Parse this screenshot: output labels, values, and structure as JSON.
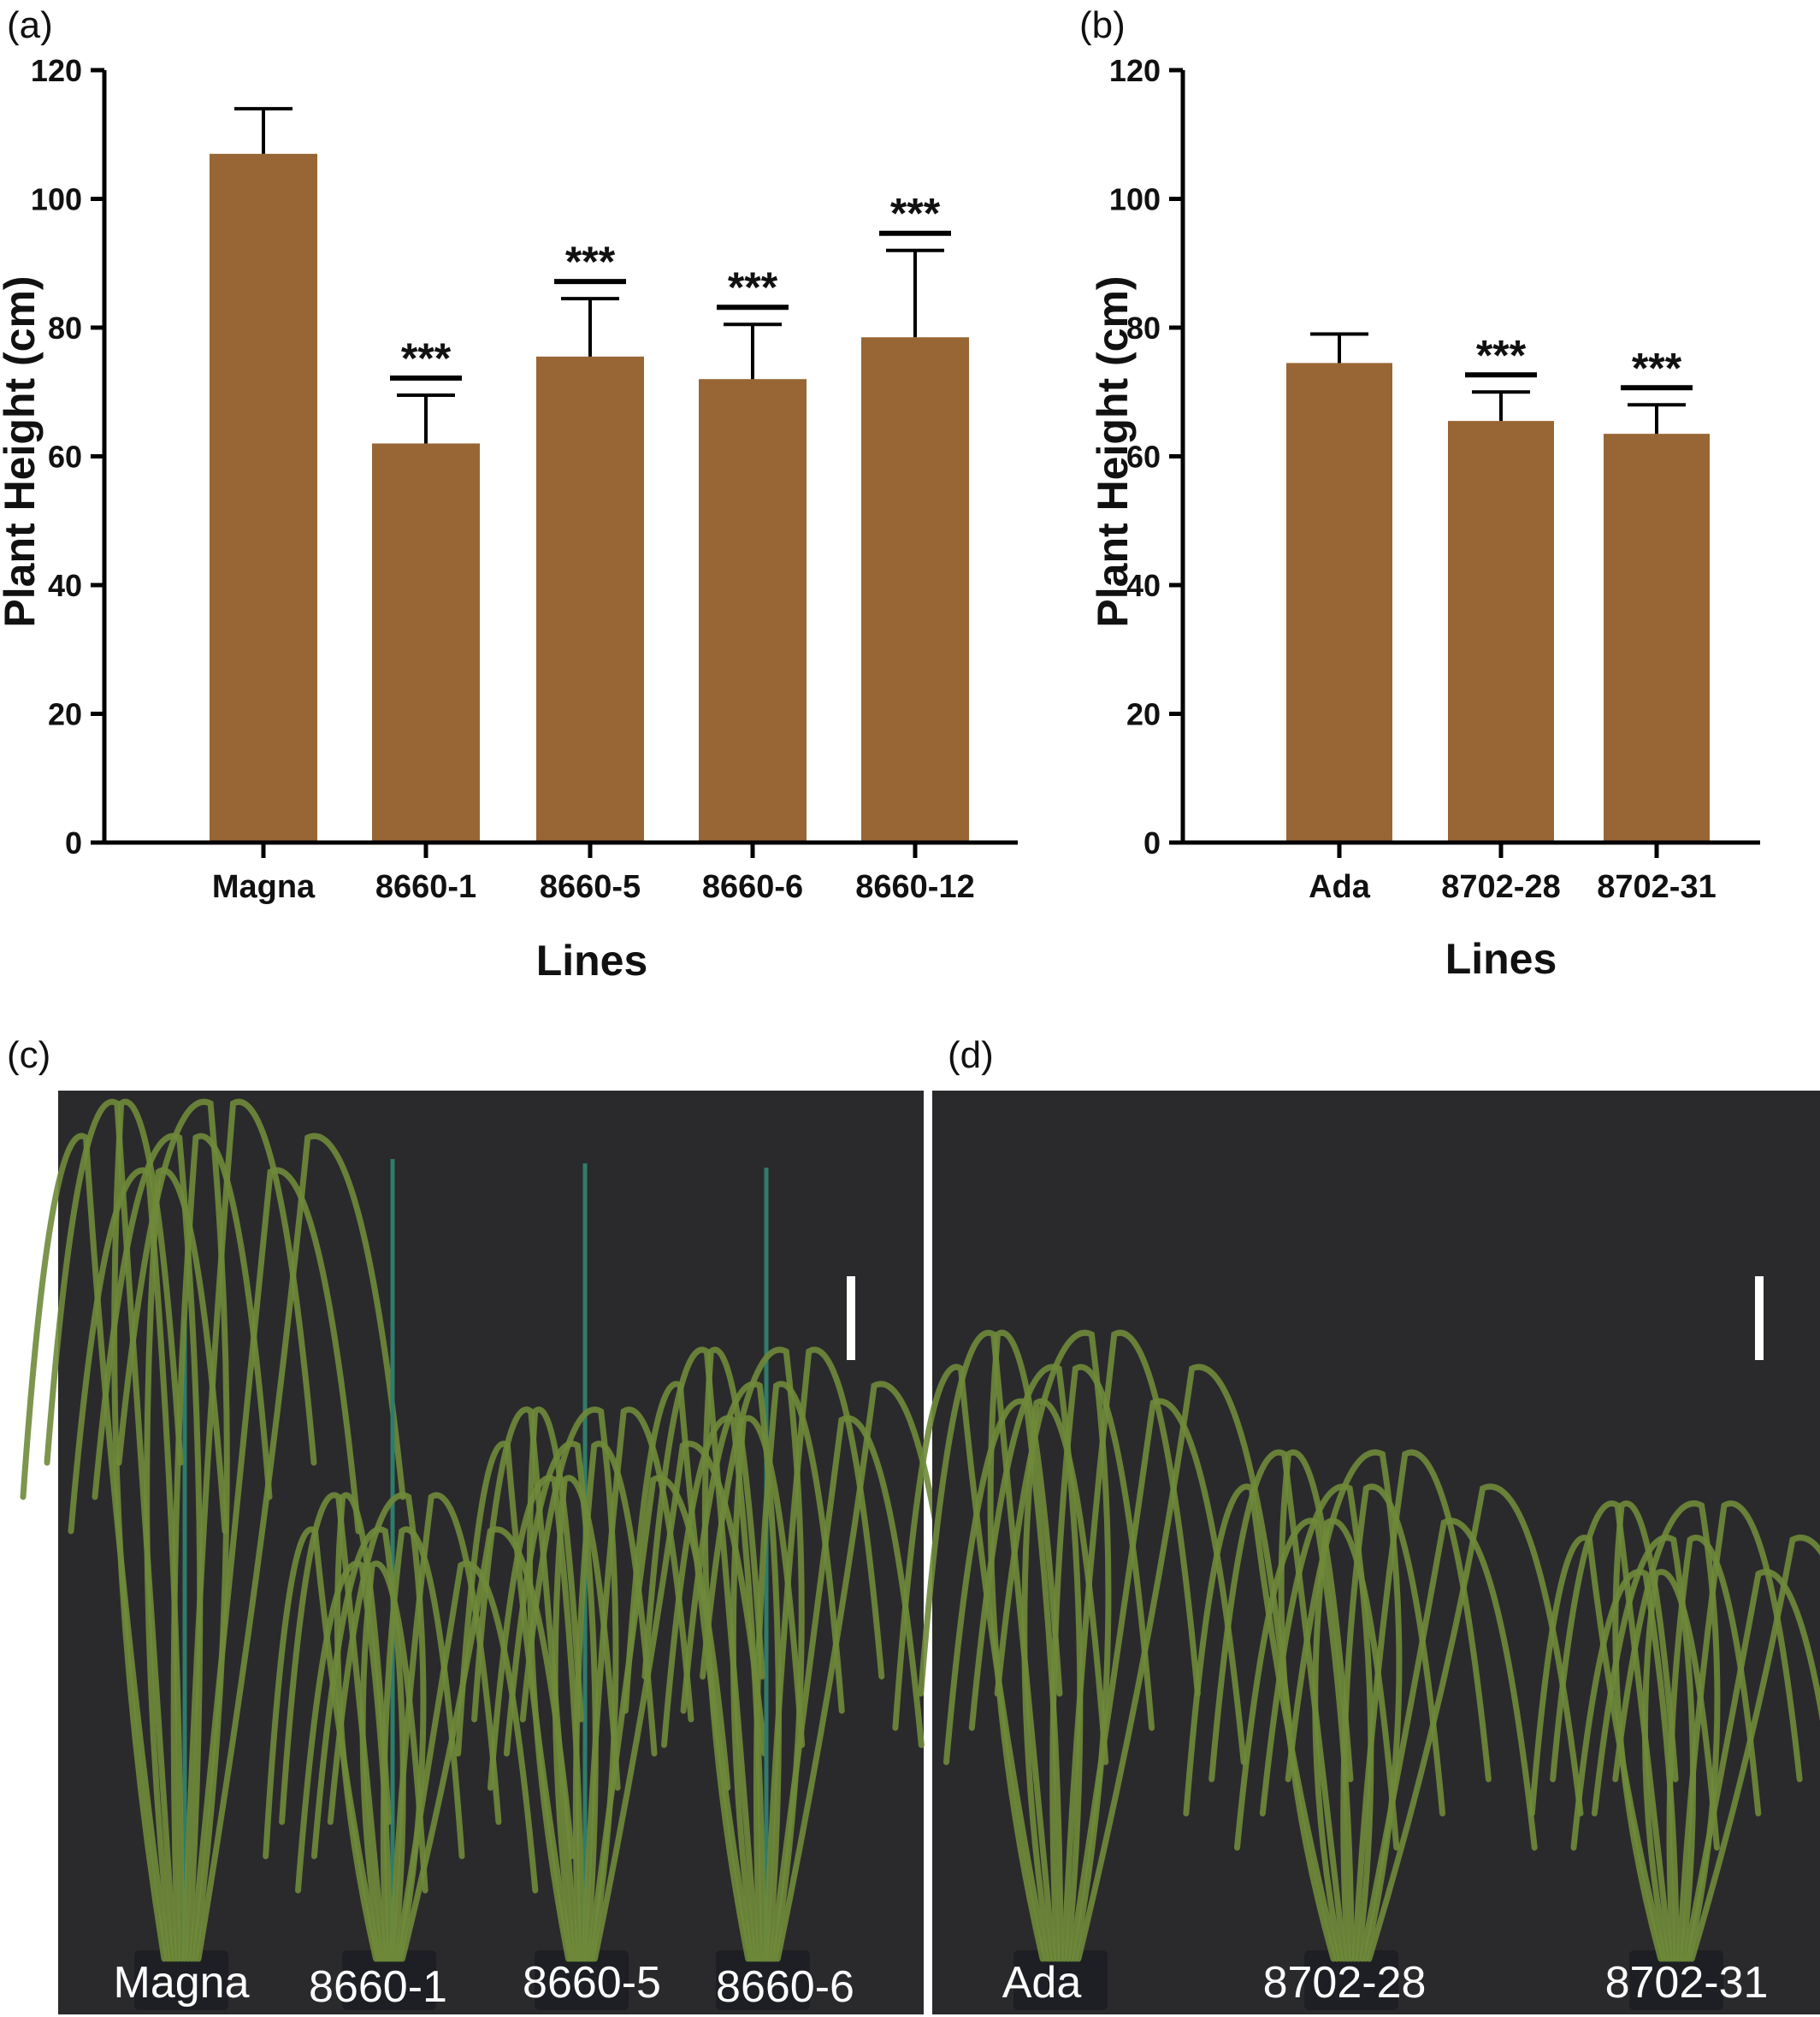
{
  "chart_data": [
    {
      "panel": "(a)",
      "type": "bar",
      "categories": [
        "Magna",
        "8660-1",
        "8660-5",
        "8660-6",
        "8660-12"
      ],
      "values": [
        107,
        62,
        75.5,
        72,
        78.5
      ],
      "error": [
        7,
        7.5,
        9,
        8.5,
        13.5
      ],
      "significance": [
        "",
        "***",
        "***",
        "***",
        "***"
      ],
      "xlabel": "Lines",
      "ylabel": "Plant Height (cm)",
      "ylim": [
        0,
        120
      ],
      "yticks": [
        "0",
        "20",
        "40",
        "60",
        "80",
        "100",
        "120"
      ],
      "bar_color": "#986634",
      "grid": false
    },
    {
      "panel": "(b)",
      "type": "bar",
      "categories": [
        "Ada",
        "8702-28",
        "8702-31"
      ],
      "values": [
        74.5,
        65.5,
        63.5
      ],
      "error": [
        4.5,
        4.5,
        4.5
      ],
      "significance": [
        "",
        "***",
        "***"
      ],
      "xlabel": "Lines",
      "ylabel": "Plant Height (cm)",
      "ylim": [
        0,
        120
      ],
      "yticks": [
        "0",
        "20",
        "40",
        "60",
        "80",
        "100",
        "120"
      ],
      "bar_color": "#986634",
      "grid": false
    }
  ],
  "photos": [
    {
      "panel": "(c)",
      "labels": [
        "Magna",
        "8660-1",
        "8660-5",
        "8660-6"
      ],
      "background": "#2a2a2c",
      "plant_color": "#6f8a3a"
    },
    {
      "panel": "(d)",
      "labels": [
        "Ada",
        "8702-28",
        "8702-31"
      ],
      "background": "#2a2a2c",
      "plant_color": "#6f8a3a"
    }
  ]
}
